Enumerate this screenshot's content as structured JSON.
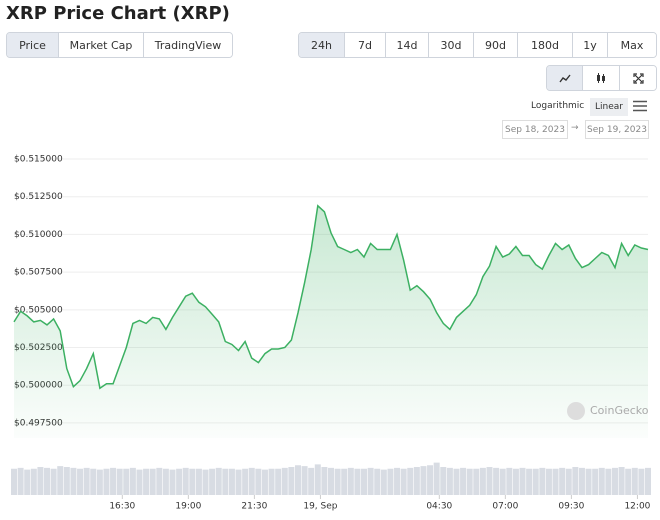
{
  "header": {
    "title": "XRP Price Chart (XRP)"
  },
  "tabs": [
    "Price",
    "Market Cap",
    "TradingView"
  ],
  "ranges": [
    "24h",
    "7d",
    "14d",
    "30d",
    "90d",
    "180d",
    "1y",
    "Max"
  ],
  "scale_options": [
    "Logarithmic",
    "Linear"
  ],
  "date_range": {
    "from": "Sep 18, 2023",
    "separator": "→",
    "to": "Sep 19, 2023"
  },
  "chart_data": {
    "type": "line",
    "color": "#3cb062",
    "grid": true,
    "watermark": "CoinGecko",
    "xlim": [
      12.4,
      36.4
    ],
    "ylim": [
      0.4965,
      0.5165
    ],
    "xticks": [
      {
        "value": 16.5,
        "label": "16:30"
      },
      {
        "value": 19,
        "label": "19:00"
      },
      {
        "value": 21.5,
        "label": "21:30"
      },
      {
        "value": 24,
        "label": "19, Sep"
      },
      {
        "value": 28.5,
        "label": "04:30"
      },
      {
        "value": 31,
        "label": "07:00"
      },
      {
        "value": 33.5,
        "label": "09:30"
      },
      {
        "value": 36,
        "label": "12:00"
      }
    ],
    "yticks": [
      {
        "value": 0.4975,
        "label": "$0.497500"
      },
      {
        "value": 0.5,
        "label": "$0.500000"
      },
      {
        "value": 0.5025,
        "label": "$0.502500"
      },
      {
        "value": 0.505,
        "label": "$0.505000"
      },
      {
        "value": 0.5075,
        "label": "$0.507500"
      },
      {
        "value": 0.51,
        "label": "$0.510000"
      },
      {
        "value": 0.5125,
        "label": "$0.512500"
      },
      {
        "value": 0.515,
        "label": "$0.515000"
      }
    ],
    "x": [
      12.4,
      12.65,
      12.9,
      13.15,
      13.4,
      13.65,
      13.9,
      14.15,
      14.4,
      14.65,
      14.9,
      15.15,
      15.4,
      15.65,
      15.9,
      16.15,
      16.4,
      16.65,
      16.9,
      17.15,
      17.4,
      17.65,
      17.9,
      18.15,
      18.4,
      18.65,
      18.9,
      19.15,
      19.4,
      19.65,
      19.9,
      20.15,
      20.4,
      20.65,
      20.9,
      21.15,
      21.4,
      21.65,
      21.9,
      22.15,
      22.4,
      22.65,
      22.9,
      23.15,
      23.4,
      23.65,
      23.9,
      24.15,
      24.4,
      24.65,
      24.9,
      25.15,
      25.4,
      25.65,
      25.9,
      26.15,
      26.4,
      26.65,
      26.9,
      27.15,
      27.4,
      27.65,
      27.9,
      28.15,
      28.4,
      28.65,
      28.9,
      29.15,
      29.4,
      29.65,
      29.9,
      30.15,
      30.4,
      30.65,
      30.9,
      31.15,
      31.4,
      31.65,
      31.9,
      32.15,
      32.4,
      32.65,
      32.9,
      33.15,
      33.4,
      33.65,
      33.9,
      34.15,
      34.4,
      34.65,
      34.9,
      35.15,
      35.4,
      35.65,
      35.9,
      36.15,
      36.4
    ],
    "values": [
      0.5042,
      0.5049,
      0.5046,
      0.5042,
      0.5043,
      0.504,
      0.5044,
      0.5036,
      0.5011,
      0.4999,
      0.5003,
      0.5011,
      0.5021,
      0.4998,
      0.5001,
      0.5001,
      0.5013,
      0.5025,
      0.5041,
      0.5043,
      0.5041,
      0.5045,
      0.5044,
      0.5037,
      0.5045,
      0.5052,
      0.5059,
      0.5061,
      0.5055,
      0.5052,
      0.5047,
      0.5042,
      0.5029,
      0.5027,
      0.5023,
      0.5029,
      0.5018,
      0.5015,
      0.5021,
      0.5024,
      0.5024,
      0.5025,
      0.503,
      0.5048,
      0.5068,
      0.509,
      0.5119,
      0.5115,
      0.5101,
      0.5092,
      0.509,
      0.5088,
      0.509,
      0.5085,
      0.5094,
      0.509,
      0.509,
      0.509,
      0.51,
      0.5083,
      0.5063,
      0.5066,
      0.5062,
      0.5057,
      0.5048,
      0.5041,
      0.5037,
      0.5045,
      0.5049,
      0.5053,
      0.506,
      0.5072,
      0.5079,
      0.5092,
      0.5085,
      0.5087,
      0.5092,
      0.5086,
      0.5086,
      0.508,
      0.5077,
      0.5086,
      0.5094,
      0.509,
      0.5093,
      0.5084,
      0.5078,
      0.508,
      0.5084,
      0.5088,
      0.5086,
      0.5078,
      0.5094,
      0.5086,
      0.5093,
      0.5091,
      0.509
    ],
    "volume_lim": [
      0,
      40
    ],
    "volume": [
      30,
      31,
      29,
      30,
      32,
      31,
      30,
      33,
      32,
      31,
      30,
      31,
      30,
      29,
      30,
      31,
      30,
      30,
      31,
      29,
      30,
      30,
      31,
      30,
      29,
      30,
      31,
      30,
      30,
      29,
      30,
      31,
      30,
      30,
      29,
      30,
      31,
      30,
      29,
      30,
      30,
      31,
      32,
      34,
      33,
      31,
      35,
      32,
      31,
      30,
      30,
      31,
      30,
      30,
      31,
      30,
      29,
      30,
      31,
      30,
      31,
      32,
      33,
      34,
      37,
      32,
      31,
      30,
      31,
      30,
      30,
      31,
      32,
      31,
      30,
      31,
      30,
      31,
      30,
      30,
      31,
      30,
      30,
      31,
      30,
      32,
      31,
      30,
      30,
      31,
      30,
      31,
      32,
      30,
      31,
      30,
      31
    ]
  }
}
